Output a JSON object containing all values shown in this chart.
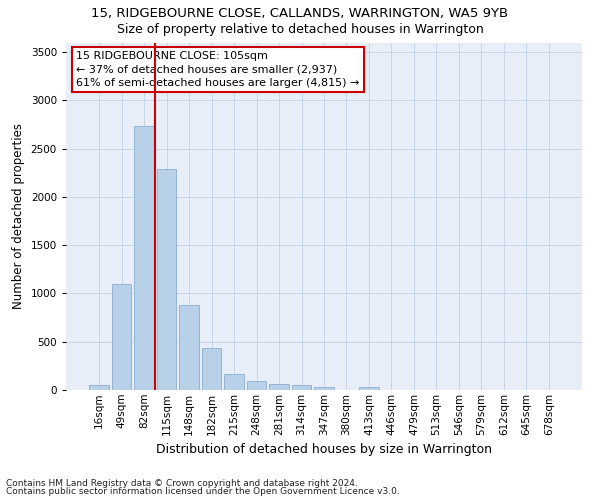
{
  "title1": "15, RIDGEBOURNE CLOSE, CALLANDS, WARRINGTON, WA5 9YB",
  "title2": "Size of property relative to detached houses in Warrington",
  "xlabel": "Distribution of detached houses by size in Warrington",
  "ylabel": "Number of detached properties",
  "categories": [
    "16sqm",
    "49sqm",
    "82sqm",
    "115sqm",
    "148sqm",
    "182sqm",
    "215sqm",
    "248sqm",
    "281sqm",
    "314sqm",
    "347sqm",
    "380sqm",
    "413sqm",
    "446sqm",
    "479sqm",
    "513sqm",
    "546sqm",
    "579sqm",
    "612sqm",
    "645sqm",
    "678sqm"
  ],
  "values": [
    55,
    1100,
    2730,
    2290,
    880,
    430,
    170,
    90,
    60,
    50,
    35,
    0,
    30,
    0,
    0,
    0,
    0,
    0,
    0,
    0,
    0
  ],
  "bar_color": "#b8d0e8",
  "bar_edge_color": "#8ab0d0",
  "vline_color": "#cc0000",
  "annotation_line1": "15 RIDGEBOURNE CLOSE: 105sqm",
  "annotation_line2": "← 37% of detached houses are smaller (2,937)",
  "annotation_line3": "61% of semi-detached houses are larger (4,815) →",
  "annotation_box_facecolor": "#ffffff",
  "annotation_box_edgecolor": "#cc0000",
  "ylim": [
    0,
    3600
  ],
  "yticks": [
    0,
    500,
    1000,
    1500,
    2000,
    2500,
    3000,
    3500
  ],
  "grid_color": "#c8d4e8",
  "background_color": "#e8eef8",
  "footnote1": "Contains HM Land Registry data © Crown copyright and database right 2024.",
  "footnote2": "Contains public sector information licensed under the Open Government Licence v3.0.",
  "title1_fontsize": 9.5,
  "title2_fontsize": 9,
  "xlabel_fontsize": 9,
  "ylabel_fontsize": 8.5,
  "annotation_fontsize": 8,
  "tick_fontsize": 7.5,
  "footnote_fontsize": 6.5
}
